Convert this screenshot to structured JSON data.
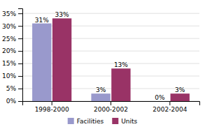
{
  "chart_data": {
    "type": "bar",
    "categories": [
      "1998-2000",
      "2000-2002",
      "2002-2004"
    ],
    "series": [
      {
        "name": "Facilities",
        "color": "#9999cc",
        "values": [
          31,
          3,
          0
        ],
        "value_labels": [
          "31%",
          "3%",
          "0%"
        ]
      },
      {
        "name": "Units",
        "color": "#993366",
        "values": [
          33,
          13,
          3
        ],
        "value_labels": [
          "33%",
          "13%",
          "3%"
        ]
      }
    ],
    "ylim": [
      0,
      37
    ],
    "yticks": [
      {
        "value": 0,
        "label": "0%"
      },
      {
        "value": 5,
        "label": "5%"
      },
      {
        "value": 10,
        "label": "10%"
      },
      {
        "value": 15,
        "label": "15%"
      },
      {
        "value": 20,
        "label": "20%"
      },
      {
        "value": 25,
        "label": "25%"
      },
      {
        "value": 30,
        "label": "30%"
      },
      {
        "value": 35,
        "label": "35%"
      }
    ],
    "grid": true,
    "data_labels": true,
    "legend": "bottom"
  }
}
